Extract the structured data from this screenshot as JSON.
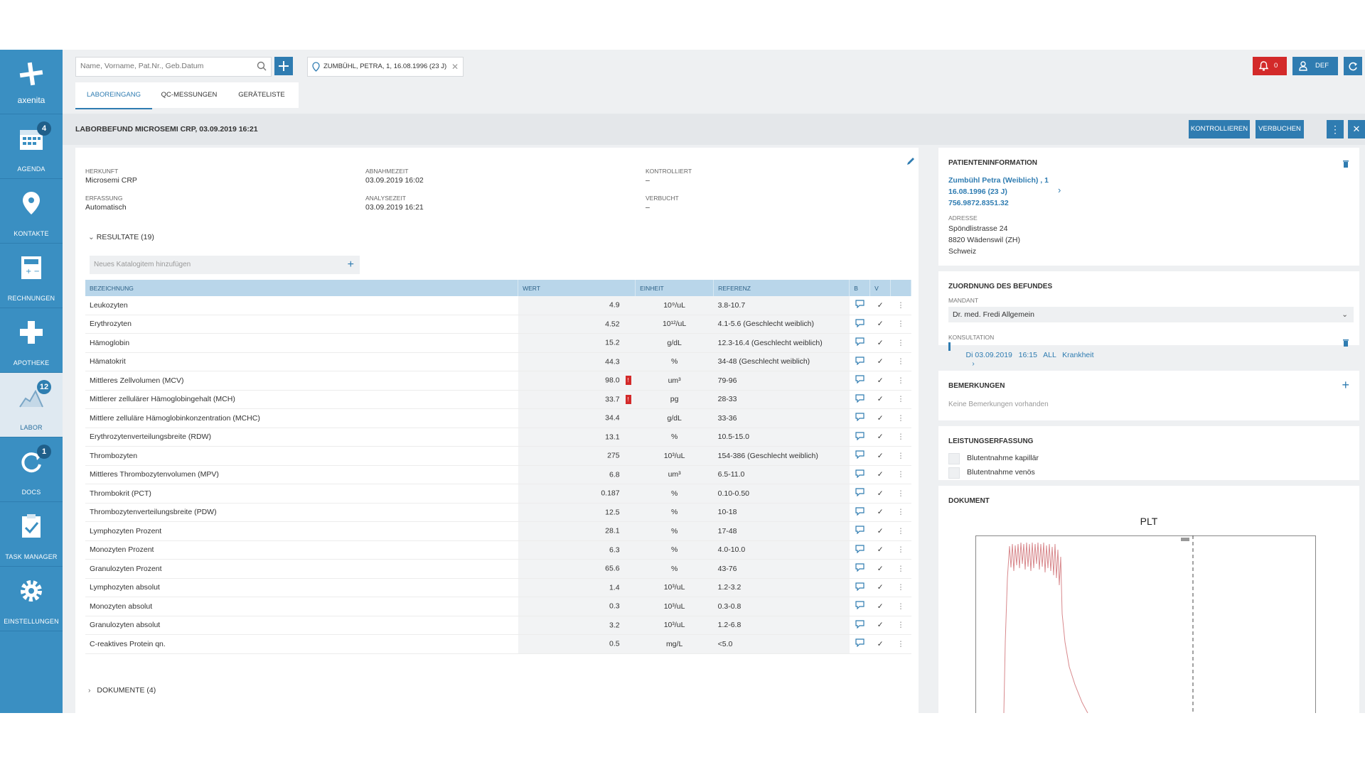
{
  "sidebar": {
    "logo_text": "axenita",
    "items": [
      {
        "label": "AGENDA",
        "badge": "4"
      },
      {
        "label": "KONTAKTE",
        "badge": ""
      },
      {
        "label": "RECHNUNGEN",
        "badge": ""
      },
      {
        "label": "APOTHEKE",
        "badge": ""
      },
      {
        "label": "LABOR",
        "badge": "12"
      },
      {
        "label": "DOCS",
        "badge": "1"
      },
      {
        "label": "TASK MANAGER",
        "badge": ""
      },
      {
        "label": "EINSTELLUNGEN",
        "badge": ""
      }
    ]
  },
  "topbar": {
    "search_placeholder": "Name, Vorname, Pat.Nr., Geb.Datum",
    "patient_chip": "ZUMBÜHL, PETRA, 1, 16.08.1996 (23 J)",
    "notification_count": "0",
    "user_label": "DEF"
  },
  "tabs": [
    {
      "label": "LABOREINGANG",
      "active": true
    },
    {
      "label": "QC-MESSUNGEN",
      "active": false
    },
    {
      "label": "GERÄTELISTE",
      "active": false
    }
  ],
  "titlebar": {
    "title": "LABORBEFUND MICROSEMI CRP, 03.09.2019 16:21",
    "btn_kontrollieren": "KONTROLLIEREN",
    "btn_verbuchen": "VERBUCHEN"
  },
  "meta": {
    "herkunft_label": "HERKUNFT",
    "herkunft": "Microsemi CRP",
    "erfassung_label": "ERFASSUNG",
    "erfassung": "Automatisch",
    "abnahmezeit_label": "ABNAHMEZEIT",
    "abnahmezeit": "03.09.2019 16:02",
    "analysezeit_label": "ANALYSEZEIT",
    "analysezeit": "03.09.2019 16:21",
    "kontrolliert_label": "KONTROLLIERT",
    "kontrolliert": "–",
    "verbucht_label": "VERBUCHT",
    "verbucht": "–"
  },
  "results": {
    "toggle": "RESULTATE (19)",
    "catalog_placeholder": "Neues Katalogitem hinzufügen",
    "headers": {
      "bezeichnung": "BEZEICHNUNG",
      "wert": "WERT",
      "einheit": "EINHEIT",
      "referenz": "REFERENZ",
      "b": "B",
      "v": "V"
    },
    "rows": [
      {
        "name": "Leukozyten",
        "wert": "4.9",
        "einheit": "10⁹/uL",
        "ref": "3.8-10.7",
        "flag": false
      },
      {
        "name": "Erythrozyten",
        "wert": "4.52",
        "einheit": "10¹²/uL",
        "ref": "4.1-5.6 (Geschlecht weiblich)",
        "flag": false
      },
      {
        "name": "Hämoglobin",
        "wert": "15.2",
        "einheit": "g/dL",
        "ref": "12.3-16.4 (Geschlecht weiblich)",
        "flag": false
      },
      {
        "name": "Hämatokrit",
        "wert": "44.3",
        "einheit": "%",
        "ref": "34-48 (Geschlecht weiblich)",
        "flag": false
      },
      {
        "name": "Mittleres Zellvolumen (MCV)",
        "wert": "98.0",
        "einheit": "um³",
        "ref": "79-96",
        "flag": true
      },
      {
        "name": "Mittlerer zellulärer Hämoglobingehalt (MCH)",
        "wert": "33.7",
        "einheit": "pg",
        "ref": "28-33",
        "flag": true
      },
      {
        "name": "Mittlere zelluläre Hämoglobinkonzentration (MCHC)",
        "wert": "34.4",
        "einheit": "g/dL",
        "ref": "33-36",
        "flag": false
      },
      {
        "name": "Erythrozytenverteilungsbreite (RDW)",
        "wert": "13.1",
        "einheit": "%",
        "ref": "10.5-15.0",
        "flag": false
      },
      {
        "name": "Thrombozyten",
        "wert": "275",
        "einheit": "10³/uL",
        "ref": "154-386 (Geschlecht weiblich)",
        "flag": false
      },
      {
        "name": "Mittleres Thrombozytenvolumen (MPV)",
        "wert": "6.8",
        "einheit": "um³",
        "ref": "6.5-11.0",
        "flag": false
      },
      {
        "name": "Thrombokrit (PCT)",
        "wert": "0.187",
        "einheit": "%",
        "ref": "0.10-0.50",
        "flag": false
      },
      {
        "name": "Thrombozytenverteilungsbreite (PDW)",
        "wert": "12.5",
        "einheit": "%",
        "ref": "10-18",
        "flag": false
      },
      {
        "name": "Lymphozyten Prozent",
        "wert": "28.1",
        "einheit": "%",
        "ref": "17-48",
        "flag": false
      },
      {
        "name": "Monozyten Prozent",
        "wert": "6.3",
        "einheit": "%",
        "ref": "4.0-10.0",
        "flag": false
      },
      {
        "name": "Granulozyten Prozent",
        "wert": "65.6",
        "einheit": "%",
        "ref": "43-76",
        "flag": false
      },
      {
        "name": "Lymphozyten absolut",
        "wert": "1.4",
        "einheit": "10³/uL",
        "ref": "1.2-3.2",
        "flag": false
      },
      {
        "name": "Monozyten absolut",
        "wert": "0.3",
        "einheit": "10³/uL",
        "ref": "0.3-0.8",
        "flag": false
      },
      {
        "name": "Granulozyten absolut",
        "wert": "3.2",
        "einheit": "10³/uL",
        "ref": "1.2-6.8",
        "flag": false
      },
      {
        "name": "C-reaktives Protein qn.",
        "wert": "0.5",
        "einheit": "mg/L",
        "ref": "<5.0",
        "flag": false
      }
    ],
    "flag_symbol": "!",
    "check_symbol": "✓",
    "more_symbol": "⋮"
  },
  "documents_toggle": "DOKUMENTE (4)",
  "patient_info": {
    "title": "PATIENTENINFORMATION",
    "name_line": "Zumbühl Petra (Weiblich) , 1",
    "dob_line": "16.08.1996 (23 J)",
    "number_line": "756.9872.8351.32",
    "adresse_label": "ADRESSE",
    "street": "Spöndlistrasse 24",
    "city": "8820 Wädenswil (ZH)",
    "country": "Schweiz"
  },
  "zuordnung": {
    "title": "ZUORDNUNG DES BEFUNDES",
    "mandant_label": "MANDANT",
    "mandant": "Dr. med. Fredi Allgemein",
    "konsultation_label": "KONSULTATION",
    "konsultation": "Di 03.09.2019   16:15   ALL   Krankheit"
  },
  "bemerkungen": {
    "title": "BEMERKUNGEN",
    "empty": "Keine Bemerkungen vorhanden"
  },
  "leistungserfassung": {
    "title": "LEISTUNGSERFASSUNG",
    "items": [
      "Blutentnahme kapillär",
      "Blutentnahme venös"
    ]
  },
  "dokument": {
    "title": "DOKUMENT",
    "chart_title": "PLT"
  },
  "colors": {
    "sidebar": "#3a8fc2",
    "accent": "#2f7cb1",
    "alert": "#d32a2a",
    "header": "#b9d6ea"
  }
}
